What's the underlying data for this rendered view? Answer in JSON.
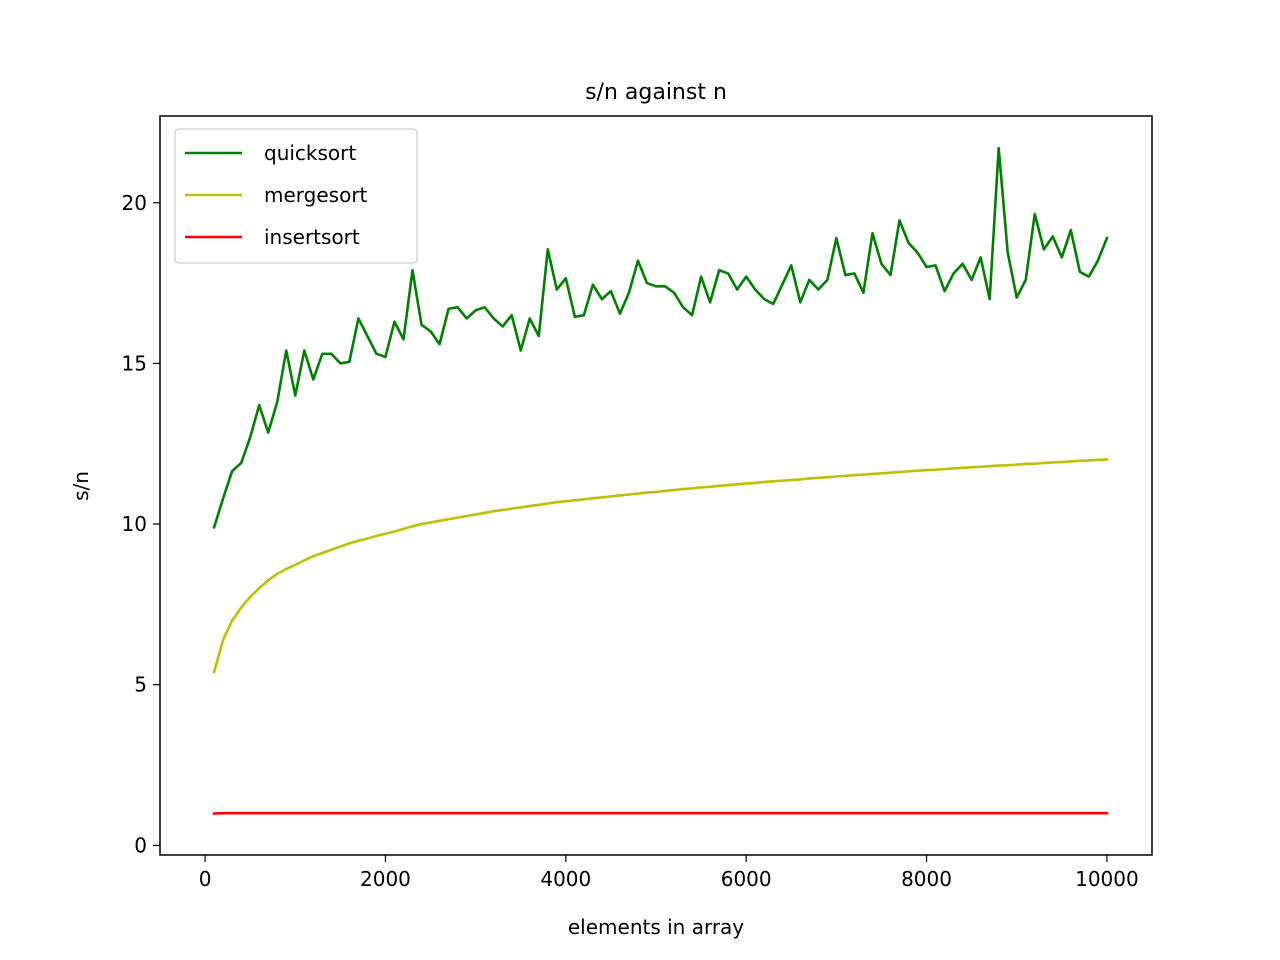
{
  "chart_data": {
    "type": "line",
    "title": "s/n against n",
    "xlabel": "elements in array",
    "ylabel": "s/n",
    "xlim": [
      -500,
      10500
    ],
    "ylim": [
      -0.3,
      22.7
    ],
    "xticks": [
      0,
      2000,
      4000,
      6000,
      8000,
      10000
    ],
    "xtick_labels": [
      "0",
      "2000",
      "4000",
      "6000",
      "8000",
      "10000"
    ],
    "yticks": [
      0,
      5,
      10,
      15,
      20
    ],
    "ytick_labels": [
      "0",
      "5",
      "10",
      "15",
      "20"
    ],
    "grid": false,
    "legend_position": "upper-left",
    "x": [
      100,
      200,
      300,
      400,
      500,
      600,
      700,
      800,
      900,
      1000,
      1100,
      1200,
      1300,
      1400,
      1500,
      1600,
      1700,
      1800,
      1900,
      2000,
      2100,
      2200,
      2300,
      2400,
      2500,
      2600,
      2700,
      2800,
      2900,
      3000,
      3100,
      3200,
      3300,
      3400,
      3500,
      3600,
      3700,
      3800,
      3900,
      4000,
      4100,
      4200,
      4300,
      4400,
      4500,
      4600,
      4700,
      4800,
      4900,
      5000,
      5100,
      5200,
      5300,
      5400,
      5500,
      5600,
      5700,
      5800,
      5900,
      6000,
      6100,
      6200,
      6300,
      6400,
      6500,
      6600,
      6700,
      6800,
      6900,
      7000,
      7100,
      7200,
      7300,
      7400,
      7500,
      7600,
      7700,
      7800,
      7900,
      8000,
      8100,
      8200,
      8300,
      8400,
      8500,
      8600,
      8700,
      8800,
      8900,
      9000,
      9100,
      9200,
      9300,
      9400,
      9500,
      9600,
      9700,
      9800,
      9900,
      10000
    ],
    "series": [
      {
        "name": "quicksort",
        "color": "#008000",
        "values": [
          9.9,
          10.8,
          11.65,
          11.9,
          12.7,
          13.7,
          12.85,
          13.8,
          15.4,
          14.0,
          15.4,
          14.5,
          15.3,
          15.3,
          15.0,
          15.05,
          16.4,
          15.85,
          15.3,
          15.2,
          16.3,
          15.75,
          17.9,
          16.2,
          16.0,
          15.6,
          16.7,
          16.75,
          16.4,
          16.65,
          16.75,
          16.4,
          16.15,
          16.5,
          15.4,
          16.4,
          15.85,
          18.55,
          17.3,
          17.65,
          16.45,
          16.5,
          17.45,
          17.0,
          17.25,
          16.55,
          17.2,
          18.2,
          17.5,
          17.4,
          17.4,
          17.2,
          16.75,
          16.5,
          17.7,
          16.9,
          17.9,
          17.8,
          17.3,
          17.7,
          17.3,
          17.0,
          16.85,
          17.45,
          18.05,
          16.9,
          17.6,
          17.3,
          17.6,
          18.9,
          17.75,
          17.8,
          17.2,
          19.05,
          18.1,
          17.75,
          19.45,
          18.75,
          18.45,
          18.0,
          18.05,
          17.25,
          17.8,
          18.1,
          17.6,
          18.3,
          17.0,
          21.7,
          18.45,
          17.05,
          17.6,
          19.65,
          18.55,
          18.95,
          18.3,
          19.15,
          17.85,
          17.7,
          18.2,
          18.9
        ]
      },
      {
        "name": "mergesort",
        "color": "#bfbf00",
        "values": [
          5.4,
          6.4,
          7.0,
          7.4,
          7.73,
          8.0,
          8.25,
          8.45,
          8.6,
          8.73,
          8.87,
          9.0,
          9.1,
          9.2,
          9.3,
          9.4,
          9.48,
          9.55,
          9.63,
          9.7,
          9.77,
          9.85,
          9.93,
          10.0,
          10.05,
          10.1,
          10.15,
          10.2,
          10.25,
          10.3,
          10.35,
          10.4,
          10.44,
          10.48,
          10.52,
          10.56,
          10.6,
          10.64,
          10.68,
          10.71,
          10.74,
          10.77,
          10.8,
          10.83,
          10.86,
          10.89,
          10.92,
          10.95,
          10.98,
          11.0,
          11.03,
          11.06,
          11.09,
          11.11,
          11.14,
          11.16,
          11.19,
          11.21,
          11.24,
          11.26,
          11.28,
          11.31,
          11.33,
          11.35,
          11.37,
          11.39,
          11.42,
          11.44,
          11.46,
          11.48,
          11.5,
          11.52,
          11.54,
          11.56,
          11.58,
          11.6,
          11.62,
          11.64,
          11.66,
          11.68,
          11.69,
          11.71,
          11.73,
          11.75,
          11.77,
          11.78,
          11.8,
          11.82,
          11.83,
          11.85,
          11.87,
          11.88,
          11.9,
          11.92,
          11.93,
          11.95,
          11.97,
          11.98,
          12.0,
          12.01
        ]
      },
      {
        "name": "insertsort",
        "color": "#ff0000",
        "values": [
          0.99,
          1.0,
          1.0,
          1.0,
          1.0,
          1.0,
          1.0,
          1.0,
          1.0,
          1.0,
          1.0,
          1.0,
          1.0,
          1.0,
          1.0,
          1.0,
          1.0,
          1.0,
          1.0,
          1.0,
          1.0,
          1.0,
          1.0,
          1.0,
          1.0,
          1.0,
          1.0,
          1.0,
          1.0,
          1.0,
          1.0,
          1.0,
          1.0,
          1.0,
          1.0,
          1.0,
          1.0,
          1.0,
          1.0,
          1.0,
          1.0,
          1.0,
          1.0,
          1.0,
          1.0,
          1.0,
          1.0,
          1.0,
          1.0,
          1.0,
          1.0,
          1.0,
          1.0,
          1.0,
          1.0,
          1.0,
          1.0,
          1.0,
          1.0,
          1.0,
          1.0,
          1.0,
          1.0,
          1.0,
          1.0,
          1.0,
          1.0,
          1.0,
          1.0,
          1.0,
          1.0,
          1.0,
          1.0,
          1.0,
          1.0,
          1.0,
          1.0,
          1.0,
          1.0,
          1.0,
          1.0,
          1.0,
          1.0,
          1.0,
          1.0,
          1.0,
          1.0,
          1.0,
          1.0,
          1.0,
          1.0,
          1.0,
          1.0,
          1.0,
          1.0,
          1.0,
          1.0,
          1.0,
          1.0,
          1.0
        ]
      }
    ]
  }
}
